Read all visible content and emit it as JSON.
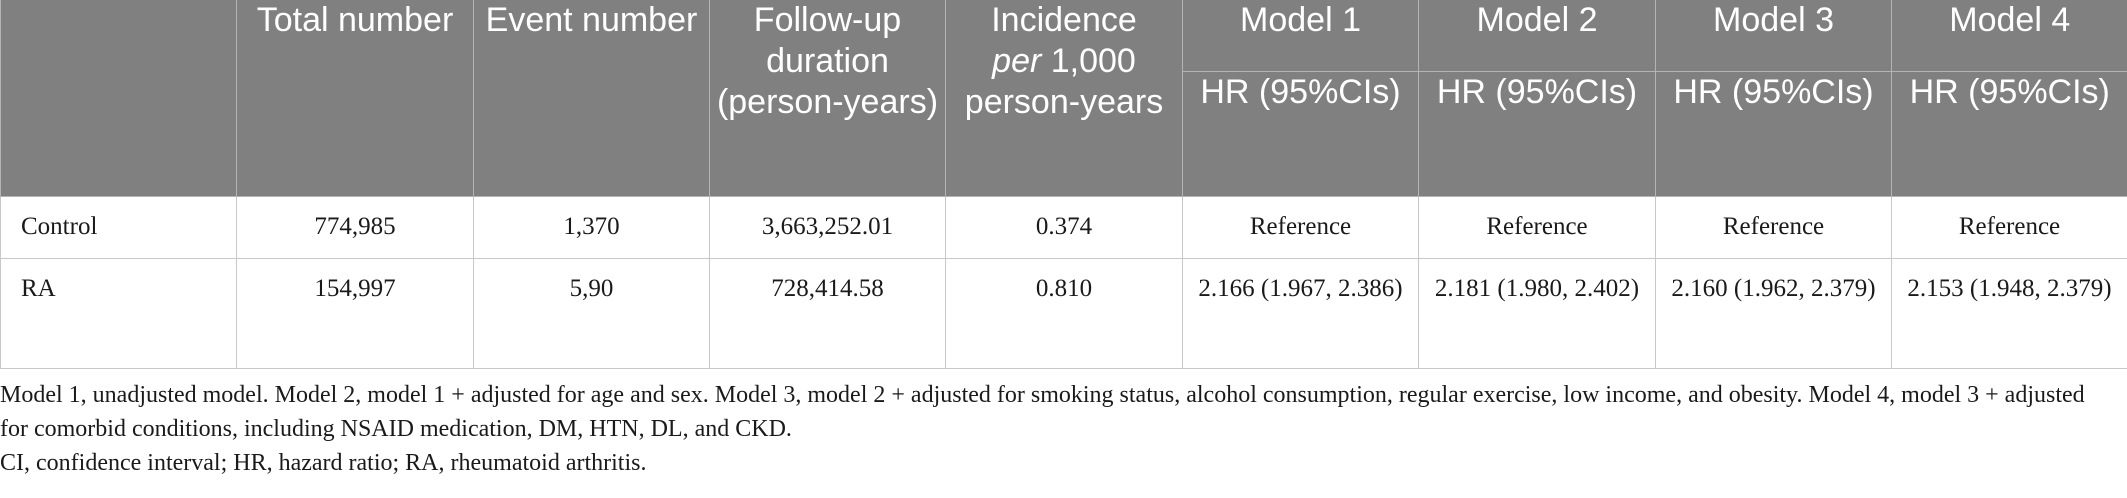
{
  "table": {
    "headers": {
      "stub": "",
      "total_number": "Total number",
      "event_number": "Event number",
      "follow_up": "Follow-up duration (person-years)",
      "incidence_prefix": "Incidence",
      "incidence_italic": "per",
      "incidence_suffix": "1,000 person-years",
      "models": [
        "Model 1",
        "Model 2",
        "Model 3",
        "Model 4"
      ],
      "hr_label": "HR (95%CIs)"
    },
    "rows": [
      {
        "group": "Control",
        "total_number": "774,985",
        "event_number": "1,370",
        "follow_up": "3,663,252.01",
        "incidence": "0.374",
        "model1": "Reference",
        "model2": "Reference",
        "model3": "Reference",
        "model4": "Reference"
      },
      {
        "group": "RA",
        "total_number": "154,997",
        "event_number": "5,90",
        "follow_up": "728,414.58",
        "incidence": "0.810",
        "model1": "2.166 (1.967, 2.386)",
        "model2": "2.181 (1.980, 2.402)",
        "model3": "2.160 (1.962, 2.379)",
        "model4": "2.153 (1.948, 2.379)"
      }
    ]
  },
  "footnotes": {
    "models": "Model 1, unadjusted model. Model 2, model 1 + adjusted for age and sex. Model 3, model 2 + adjusted for smoking status, alcohol consumption, regular exercise, low income, and obesity. Model 4, model 3 + adjusted for comorbid conditions, including NSAID medication, DM, HTN, DL, and CKD.",
    "abbreviations": "CI, confidence interval; HR, hazard ratio; RA, rheumatoid arthritis."
  }
}
